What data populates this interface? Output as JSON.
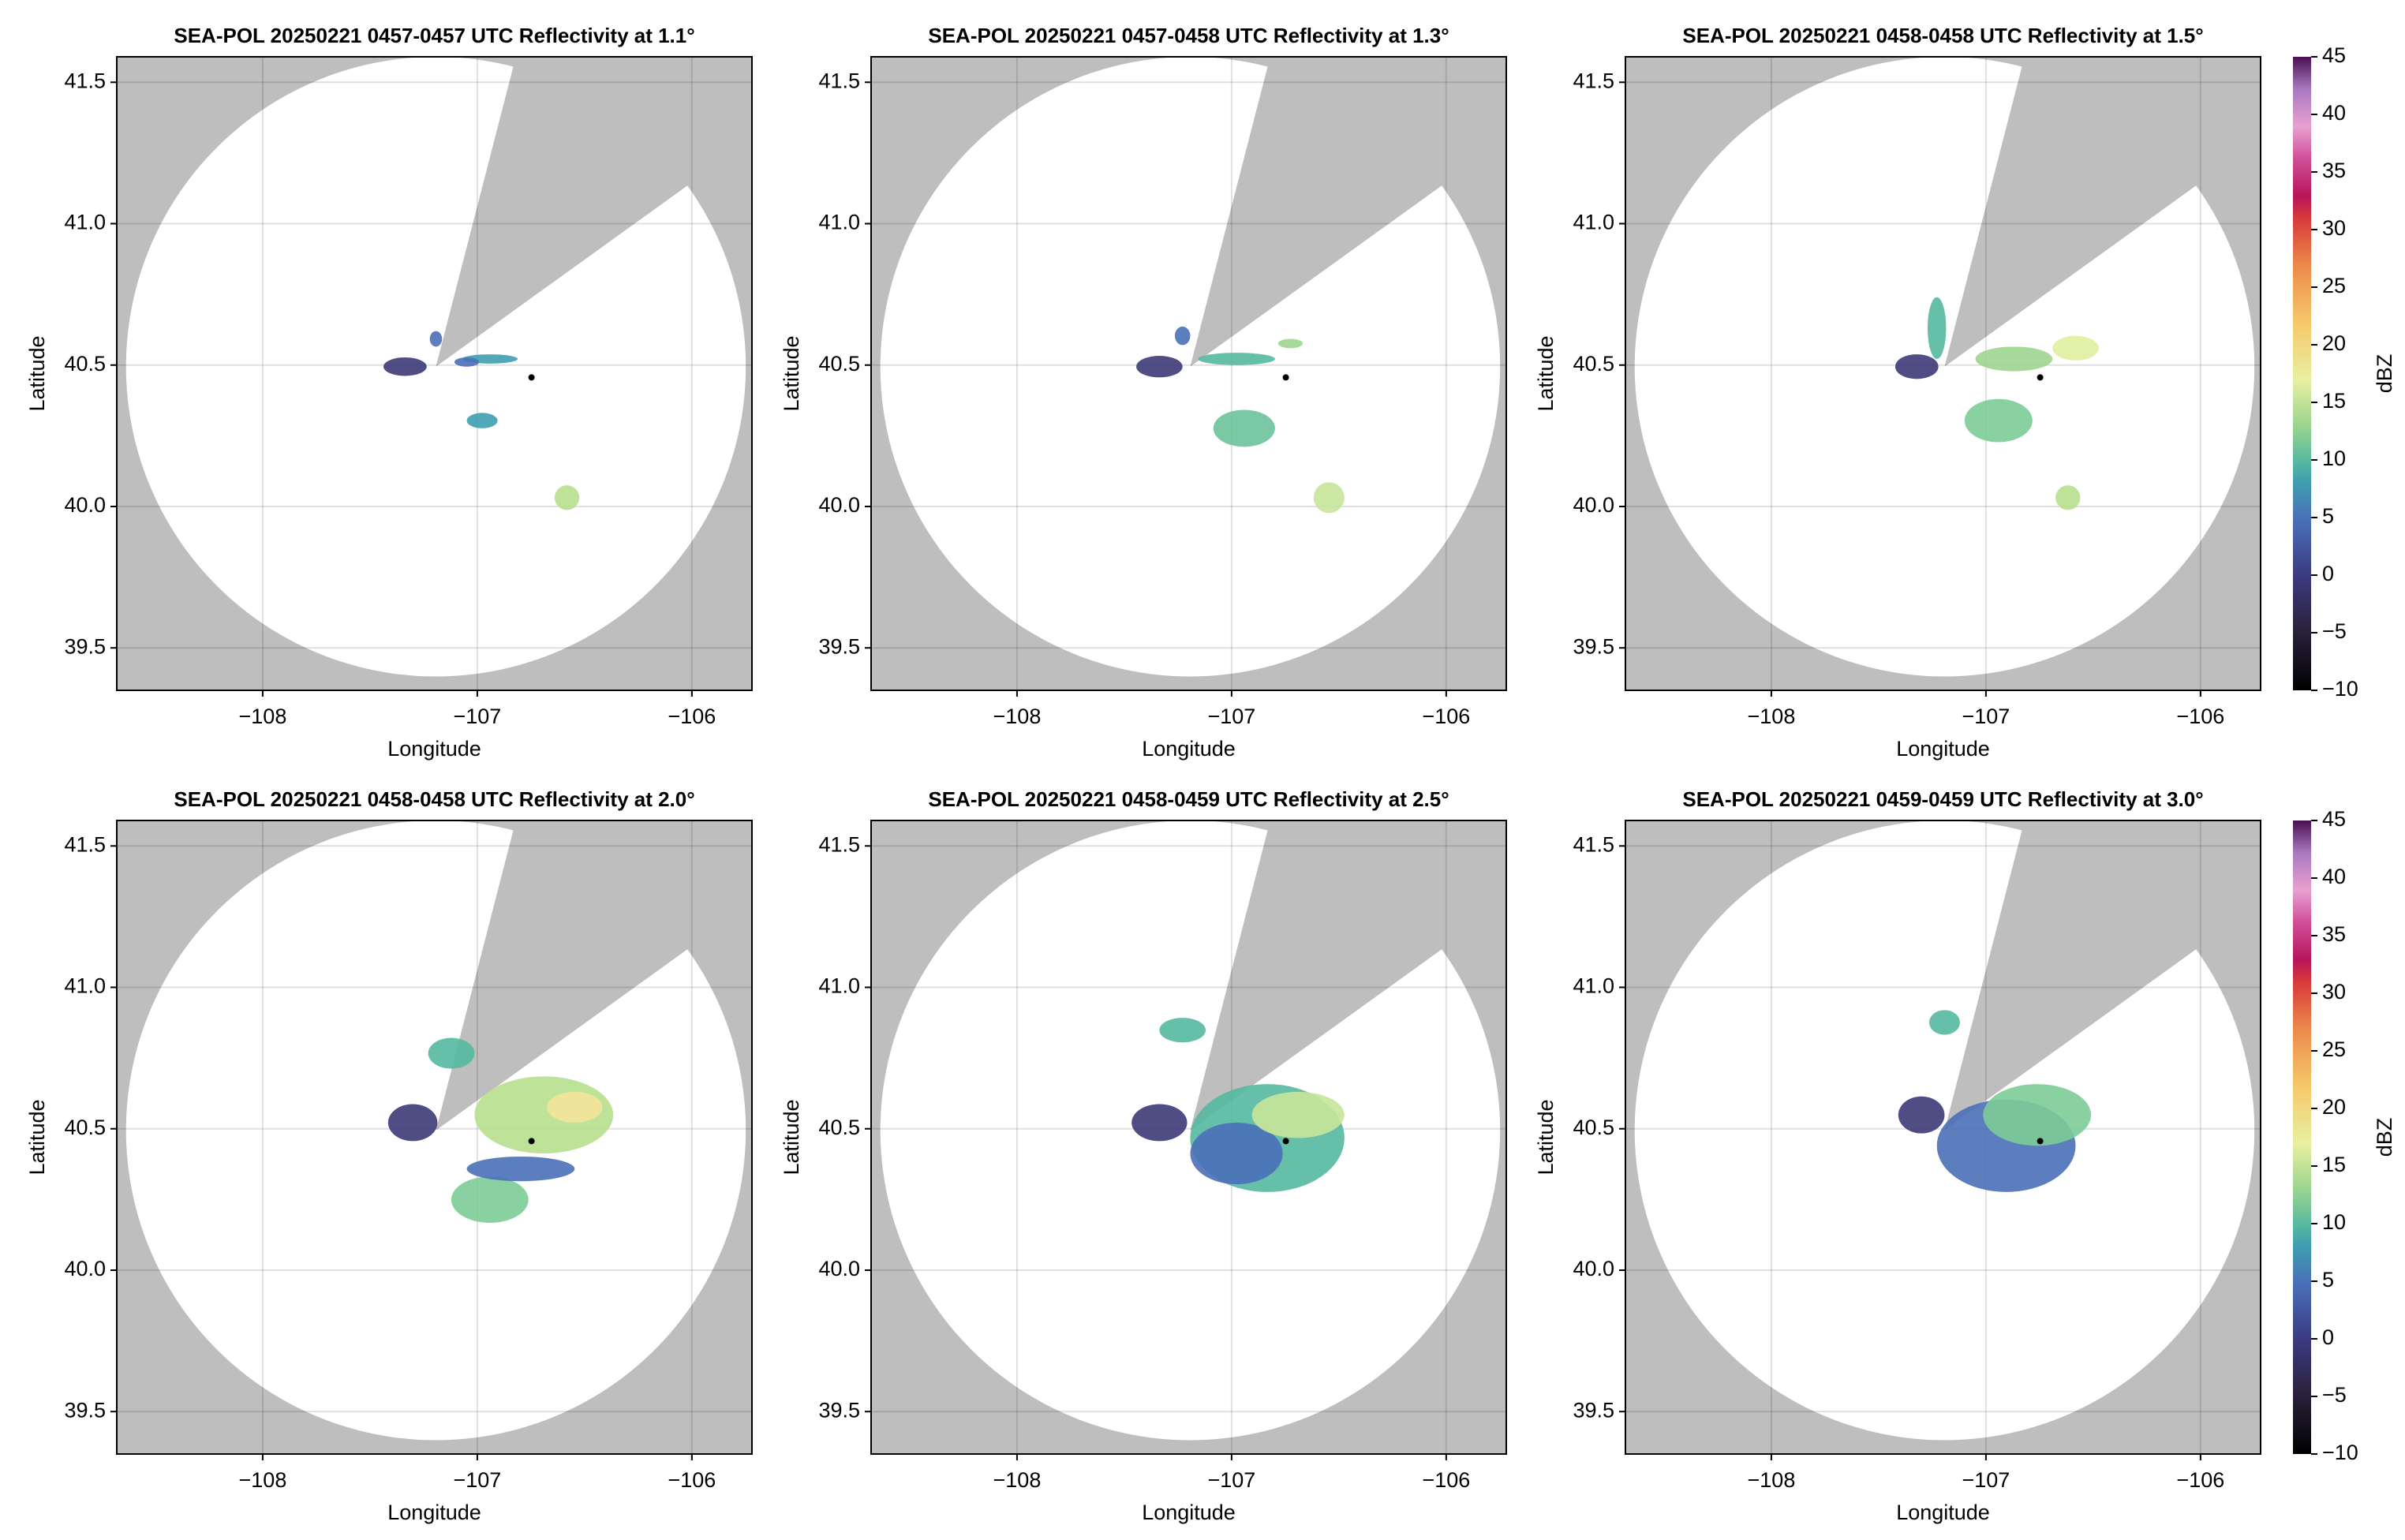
{
  "chart_data": [
    {
      "type": "radar",
      "title": "SEA-POL 20250221 0457-0457 UTC Reflectivity at 1.1°",
      "xlabel": "Longitude",
      "ylabel": "Latitude",
      "xlim": [
        -108.68,
        -105.72
      ],
      "ylim": [
        39.35,
        41.59
      ],
      "xticks": [
        {
          "value": -108,
          "label": "−108"
        },
        {
          "value": -107,
          "label": "−107"
        },
        {
          "value": -106,
          "label": "−106"
        }
      ],
      "yticks": [
        {
          "value": 39.5,
          "label": "39.5"
        },
        {
          "value": 40.0,
          "label": "40.0"
        },
        {
          "value": 40.5,
          "label": "40.5"
        },
        {
          "value": 41.0,
          "label": "41.0"
        },
        {
          "value": 41.5,
          "label": "41.5"
        }
      ],
      "grid": true
    },
    {
      "type": "radar",
      "title": "SEA-POL 20250221 0457-0458 UTC Reflectivity at 1.3°",
      "xlabel": "Longitude",
      "ylabel": "Latitude",
      "xlim": [
        -108.68,
        -105.72
      ],
      "ylim": [
        39.35,
        41.59
      ],
      "xticks": [
        {
          "value": -108,
          "label": "−108"
        },
        {
          "value": -107,
          "label": "−107"
        },
        {
          "value": -106,
          "label": "−106"
        }
      ],
      "yticks": [
        {
          "value": 39.5,
          "label": "39.5"
        },
        {
          "value": 40.0,
          "label": "40.0"
        },
        {
          "value": 40.5,
          "label": "40.5"
        },
        {
          "value": 41.0,
          "label": "41.0"
        },
        {
          "value": 41.5,
          "label": "41.5"
        }
      ],
      "grid": true
    },
    {
      "type": "radar",
      "title": "SEA-POL 20250221 0458-0458 UTC Reflectivity at 1.5°",
      "xlabel": "Longitude",
      "ylabel": "Latitude",
      "xlim": [
        -108.68,
        -105.72
      ],
      "ylim": [
        39.35,
        41.59
      ],
      "xticks": [
        {
          "value": -108,
          "label": "−108"
        },
        {
          "value": -107,
          "label": "−107"
        },
        {
          "value": -106,
          "label": "−106"
        }
      ],
      "yticks": [
        {
          "value": 39.5,
          "label": "39.5"
        },
        {
          "value": 40.0,
          "label": "40.0"
        },
        {
          "value": 40.5,
          "label": "40.5"
        },
        {
          "value": 41.0,
          "label": "41.0"
        },
        {
          "value": 41.5,
          "label": "41.5"
        }
      ],
      "grid": true,
      "colorbar": {
        "label": "dBZ",
        "clim": [
          -10,
          45
        ],
        "ticks": [
          {
            "value": -10,
            "label": "−10"
          },
          {
            "value": -5,
            "label": "−5"
          },
          0,
          5,
          10,
          15,
          20,
          25,
          30,
          35,
          40,
          45
        ]
      }
    },
    {
      "type": "radar",
      "title": "SEA-POL 20250221 0458-0458 UTC Reflectivity at 2.0°",
      "xlabel": "Longitude",
      "ylabel": "Latitude",
      "xlim": [
        -108.68,
        -105.72
      ],
      "ylim": [
        39.35,
        41.59
      ],
      "xticks": [
        {
          "value": -108,
          "label": "−108"
        },
        {
          "value": -107,
          "label": "−107"
        },
        {
          "value": -106,
          "label": "−106"
        }
      ],
      "yticks": [
        {
          "value": 39.5,
          "label": "39.5"
        },
        {
          "value": 40.0,
          "label": "40.0"
        },
        {
          "value": 40.5,
          "label": "40.5"
        },
        {
          "value": 41.0,
          "label": "41.0"
        },
        {
          "value": 41.5,
          "label": "41.5"
        }
      ],
      "grid": true
    },
    {
      "type": "radar",
      "title": "SEA-POL 20250221 0458-0459 UTC Reflectivity at 2.5°",
      "xlabel": "Longitude",
      "ylabel": "Latitude",
      "xlim": [
        -108.68,
        -105.72
      ],
      "ylim": [
        39.35,
        41.59
      ],
      "xticks": [
        {
          "value": -108,
          "label": "−108"
        },
        {
          "value": -107,
          "label": "−107"
        },
        {
          "value": -106,
          "label": "−106"
        }
      ],
      "yticks": [
        {
          "value": 39.5,
          "label": "39.5"
        },
        {
          "value": 40.0,
          "label": "40.0"
        },
        {
          "value": 40.5,
          "label": "40.5"
        },
        {
          "value": 41.0,
          "label": "41.0"
        },
        {
          "value": 41.5,
          "label": "41.5"
        }
      ],
      "grid": true
    },
    {
      "type": "radar",
      "title": "SEA-POL 20250221 0459-0459 UTC Reflectivity at 3.0°",
      "xlabel": "Longitude",
      "ylabel": "Latitude",
      "xlim": [
        -108.68,
        -105.72
      ],
      "ylim": [
        39.35,
        41.59
      ],
      "xticks": [
        {
          "value": -108,
          "label": "−108"
        },
        {
          "value": -107,
          "label": "−107"
        },
        {
          "value": -106,
          "label": "−106"
        }
      ],
      "yticks": [
        {
          "value": 39.5,
          "label": "39.5"
        },
        {
          "value": 40.0,
          "label": "40.0"
        },
        {
          "value": 40.5,
          "label": "40.5"
        },
        {
          "value": 41.0,
          "label": "41.0"
        },
        {
          "value": 41.5,
          "label": "41.5"
        }
      ],
      "grid": true,
      "colorbar": {
        "label": "dBZ",
        "clim": [
          -10,
          45
        ],
        "ticks": [
          {
            "value": -10,
            "label": "−10"
          },
          {
            "value": -5,
            "label": "−5"
          },
          0,
          5,
          10,
          15,
          20,
          25,
          30,
          35,
          40,
          45
        ]
      }
    }
  ]
}
